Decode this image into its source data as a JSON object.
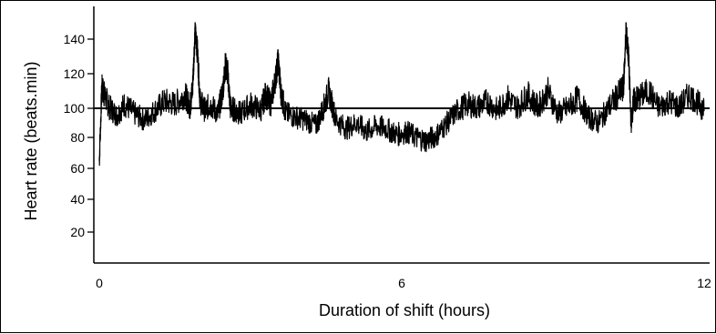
{
  "chart_data": {
    "type": "line",
    "xlabel": "Duration of shift (hours)",
    "ylabel": "Heart rate (beats.min)",
    "xlim": [
      0,
      12
    ],
    "ylim": [
      0,
      150
    ],
    "x_ticks": [
      0,
      6,
      12
    ],
    "y_ticks": [
      20,
      40,
      60,
      80,
      100,
      120,
      140
    ],
    "grid": false,
    "reference_line": {
      "y": 100
    },
    "series": [
      {
        "x": [
          0,
          0.05,
          0.1,
          0.2,
          0.35,
          0.5,
          0.7,
          0.9,
          1.1,
          1.3,
          1.5,
          1.7,
          1.8,
          1.85,
          1.9,
          1.95,
          2.0,
          2.1,
          2.2,
          2.35,
          2.45,
          2.5,
          2.55,
          2.6,
          2.7,
          2.8,
          3.0,
          3.2,
          3.3,
          3.4,
          3.5,
          3.55,
          3.6,
          3.7,
          3.9,
          4.1,
          4.3,
          4.45,
          4.55,
          4.7,
          4.9,
          5.1,
          5.3,
          5.5,
          5.7,
          5.9,
          6.1,
          6.3,
          6.5,
          6.7,
          6.9,
          7.1,
          7.3,
          7.5,
          7.7,
          7.9,
          8.1,
          8.3,
          8.5,
          8.7,
          8.9,
          9.1,
          9.3,
          9.5,
          9.7,
          9.9,
          10.1,
          10.3,
          10.4,
          10.45,
          10.5,
          10.55,
          10.6,
          10.7,
          10.9,
          11.1,
          11.3,
          11.5,
          11.7,
          11.9,
          12
        ],
        "y": [
          65,
          112,
          108,
          100,
          95,
          102,
          96,
          92,
          98,
          104,
          102,
          108,
          100,
          112,
          145,
          132,
          104,
          98,
          102,
          96,
          110,
          125,
          120,
          100,
          98,
          96,
          102,
          98,
          108,
          102,
          118,
          128,
          110,
          96,
          94,
          92,
          88,
          100,
          110,
          92,
          86,
          90,
          84,
          88,
          86,
          82,
          84,
          80,
          78,
          82,
          90,
          98,
          102,
          100,
          104,
          98,
          106,
          100,
          108,
          100,
          110,
          96,
          100,
          106,
          94,
          90,
          100,
          108,
          112,
          145,
          130,
          90,
          104,
          106,
          110,
          100,
          104,
          100,
          108,
          102,
          98
        ]
      }
    ]
  }
}
